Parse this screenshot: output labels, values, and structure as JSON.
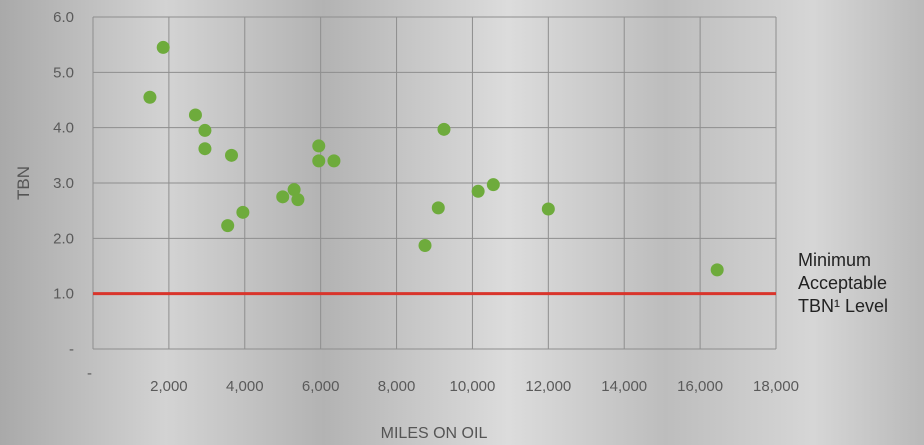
{
  "chart_data": {
    "type": "scatter",
    "xlabel": "MILES ON OIL",
    "ylabel": "TBN",
    "xlim": [
      0,
      18000
    ],
    "ylim": [
      0,
      6
    ],
    "x_ticks": [
      {
        "value": 0,
        "label": "-"
      },
      {
        "value": 2000,
        "label": "2,000"
      },
      {
        "value": 4000,
        "label": "4,000"
      },
      {
        "value": 6000,
        "label": "6,000"
      },
      {
        "value": 8000,
        "label": "8,000"
      },
      {
        "value": 10000,
        "label": "10,000"
      },
      {
        "value": 12000,
        "label": "12,000"
      },
      {
        "value": 14000,
        "label": "14,000"
      },
      {
        "value": 16000,
        "label": "16,000"
      },
      {
        "value": 18000,
        "label": "18,000"
      }
    ],
    "y_ticks": [
      {
        "value": 0,
        "label": "-"
      },
      {
        "value": 1,
        "label": "1.0"
      },
      {
        "value": 2,
        "label": "2.0"
      },
      {
        "value": 3,
        "label": "3.0"
      },
      {
        "value": 4,
        "label": "4.0"
      },
      {
        "value": 5,
        "label": "5.0"
      },
      {
        "value": 6,
        "label": "6.0"
      }
    ],
    "grid": true,
    "reference_line": {
      "y": 1.0,
      "color": "#d9342b",
      "label_lines": [
        "Minimum",
        "Acceptable",
        "TBN¹ Level"
      ]
    },
    "point_color": "#6eab3c",
    "points": [
      {
        "x": 1500,
        "y": 4.55
      },
      {
        "x": 1850,
        "y": 5.45
      },
      {
        "x": 2700,
        "y": 4.23
      },
      {
        "x": 2950,
        "y": 3.95
      },
      {
        "x": 2950,
        "y": 3.62
      },
      {
        "x": 3550,
        "y": 2.23
      },
      {
        "x": 3650,
        "y": 3.5
      },
      {
        "x": 3950,
        "y": 2.47
      },
      {
        "x": 5000,
        "y": 2.75
      },
      {
        "x": 5300,
        "y": 2.88
      },
      {
        "x": 5400,
        "y": 2.7
      },
      {
        "x": 5950,
        "y": 3.67
      },
      {
        "x": 5950,
        "y": 3.4
      },
      {
        "x": 6350,
        "y": 3.4
      },
      {
        "x": 8750,
        "y": 1.87
      },
      {
        "x": 9100,
        "y": 2.55
      },
      {
        "x": 9250,
        "y": 3.97
      },
      {
        "x": 10150,
        "y": 2.85
      },
      {
        "x": 10550,
        "y": 2.97
      },
      {
        "x": 12000,
        "y": 2.53
      },
      {
        "x": 16450,
        "y": 1.43
      }
    ]
  }
}
